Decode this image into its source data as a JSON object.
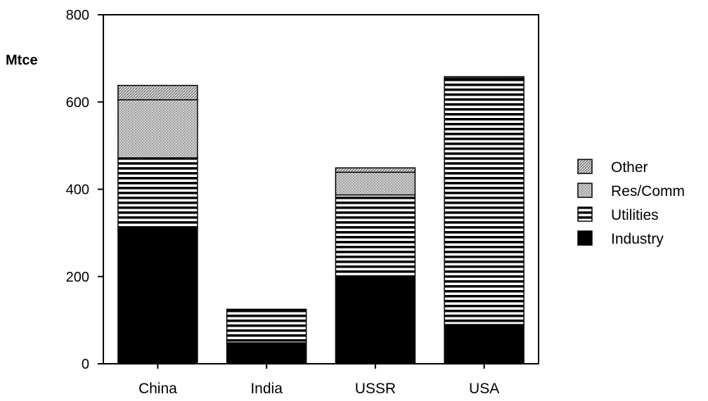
{
  "chart_data": {
    "type": "bar",
    "stacked": true,
    "categories": [
      "China",
      "India",
      "USSR",
      "USA"
    ],
    "series": [
      {
        "name": "Industry",
        "values": [
          310,
          48,
          200,
          90
        ],
        "pattern": "solid"
      },
      {
        "name": "Utilities",
        "values": [
          162,
          77,
          187,
          565
        ],
        "pattern": "hstripe"
      },
      {
        "name": "Res/Comm",
        "values": [
          133,
          0,
          52,
          0
        ],
        "pattern": "stipple"
      },
      {
        "name": "Other",
        "values": [
          33,
          0,
          10,
          3
        ],
        "pattern": "diag"
      }
    ],
    "ylabel": "Mtce",
    "xlabel": "",
    "ylim": [
      0,
      800
    ],
    "yticks": [
      0,
      200,
      400,
      600,
      800
    ],
    "grid": false,
    "legend_position": "right",
    "legend_order": [
      "Other",
      "Res/Comm",
      "Utilities",
      "Industry"
    ]
  }
}
